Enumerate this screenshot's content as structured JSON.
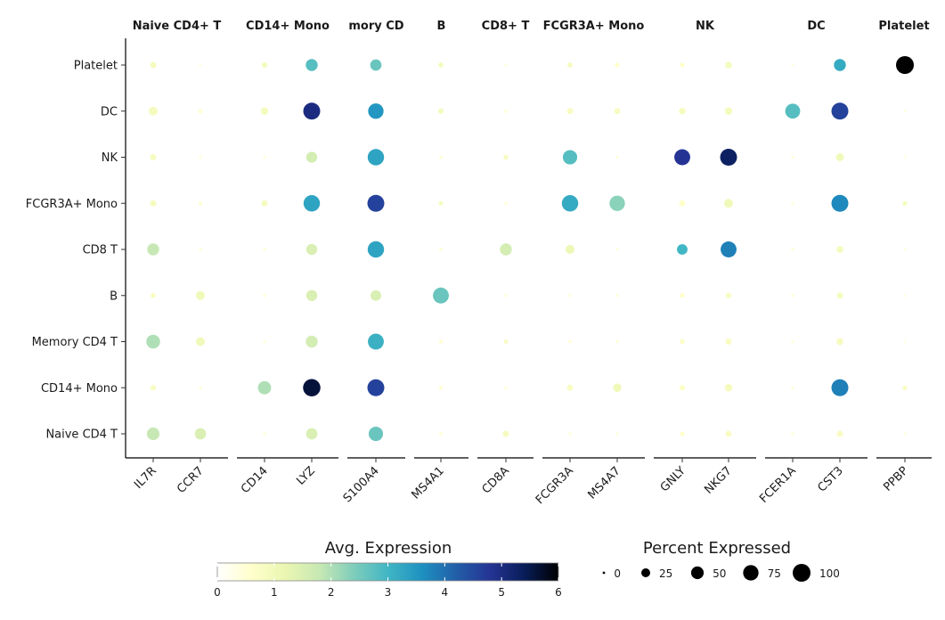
{
  "chart_data": {
    "type": "dotplot",
    "panels": [
      {
        "label": "Naive CD4+ T",
        "genes": [
          "IL7R",
          "CCR7"
        ]
      },
      {
        "label": "CD14+ Mono",
        "genes": [
          "CD14",
          "LYZ"
        ]
      },
      {
        "label": "mory CD",
        "genes": [
          "S100A4"
        ]
      },
      {
        "label": "B",
        "genes": [
          "MS4A1"
        ]
      },
      {
        "label": "CD8+ T",
        "genes": [
          "CD8A"
        ]
      },
      {
        "label": "FCGR3A+ Mono",
        "genes": [
          "FCGR3A",
          "MS4A7"
        ]
      },
      {
        "label": "NK",
        "genes": [
          "GNLY",
          "NKG7"
        ]
      },
      {
        "label": "DC",
        "genes": [
          "FCER1A",
          "CST3"
        ]
      },
      {
        "label": "Platelet",
        "genes": [
          "PPBP"
        ]
      }
    ],
    "y_categories": [
      "Platelet",
      "DC",
      "NK",
      "FCGR3A+ Mono",
      "CD8 T",
      "B",
      "Memory CD4 T",
      "CD14+ Mono",
      "Naive CD4 T"
    ],
    "genes_order": [
      "IL7R",
      "CCR7",
      "CD14",
      "LYZ",
      "S100A4",
      "MS4A1",
      "CD8A",
      "FCGR3A",
      "MS4A7",
      "GNLY",
      "NKG7",
      "FCER1A",
      "CST3",
      "PPBP"
    ],
    "points": [
      {
        "y": "Platelet",
        "x": "IL7R",
        "pct": 12,
        "avg": 0.9
      },
      {
        "y": "Platelet",
        "x": "CCR7",
        "pct": 3,
        "avg": 0.3
      },
      {
        "y": "Platelet",
        "x": "CD14",
        "pct": 10,
        "avg": 0.9
      },
      {
        "y": "Platelet",
        "x": "LYZ",
        "pct": 45,
        "avg": 2.8
      },
      {
        "y": "Platelet",
        "x": "S100A4",
        "pct": 40,
        "avg": 2.6
      },
      {
        "y": "Platelet",
        "x": "MS4A1",
        "pct": 8,
        "avg": 0.9
      },
      {
        "y": "Platelet",
        "x": "CD8A",
        "pct": 3,
        "avg": 0.3
      },
      {
        "y": "Platelet",
        "x": "FCGR3A",
        "pct": 8,
        "avg": 0.9
      },
      {
        "y": "Platelet",
        "x": "MS4A7",
        "pct": 7,
        "avg": 0.6
      },
      {
        "y": "Platelet",
        "x": "GNLY",
        "pct": 7,
        "avg": 0.6
      },
      {
        "y": "Platelet",
        "x": "NKG7",
        "pct": 14,
        "avg": 0.9
      },
      {
        "y": "Platelet",
        "x": "FCER1A",
        "pct": 3,
        "avg": 0.3
      },
      {
        "y": "Platelet",
        "x": "CST3",
        "pct": 45,
        "avg": 3.2
      },
      {
        "y": "Platelet",
        "x": "PPBP",
        "pct": 100,
        "avg": 6.0
      },
      {
        "y": "DC",
        "x": "IL7R",
        "pct": 25,
        "avg": 0.9
      },
      {
        "y": "DC",
        "x": "CCR7",
        "pct": 7,
        "avg": 0.5
      },
      {
        "y": "DC",
        "x": "CD14",
        "pct": 18,
        "avg": 0.9
      },
      {
        "y": "DC",
        "x": "LYZ",
        "pct": 90,
        "avg": 5.0
      },
      {
        "y": "DC",
        "x": "S100A4",
        "pct": 75,
        "avg": 3.5
      },
      {
        "y": "DC",
        "x": "MS4A1",
        "pct": 10,
        "avg": 0.9
      },
      {
        "y": "DC",
        "x": "CD8A",
        "pct": 4,
        "avg": 0.4
      },
      {
        "y": "DC",
        "x": "FCGR3A",
        "pct": 12,
        "avg": 0.8
      },
      {
        "y": "DC",
        "x": "MS4A7",
        "pct": 12,
        "avg": 0.8
      },
      {
        "y": "DC",
        "x": "GNLY",
        "pct": 14,
        "avg": 0.9
      },
      {
        "y": "DC",
        "x": "NKG7",
        "pct": 18,
        "avg": 0.9
      },
      {
        "y": "DC",
        "x": "FCER1A",
        "pct": 70,
        "avg": 2.8
      },
      {
        "y": "DC",
        "x": "CST3",
        "pct": 90,
        "avg": 4.6
      },
      {
        "y": "DC",
        "x": "PPBP",
        "pct": 3,
        "avg": 0.3
      },
      {
        "y": "NK",
        "x": "IL7R",
        "pct": 12,
        "avg": 0.9
      },
      {
        "y": "NK",
        "x": "CCR7",
        "pct": 3,
        "avg": 0.4
      },
      {
        "y": "NK",
        "x": "CD14",
        "pct": 3,
        "avg": 0.4
      },
      {
        "y": "NK",
        "x": "LYZ",
        "pct": 38,
        "avg": 1.6
      },
      {
        "y": "NK",
        "x": "S100A4",
        "pct": 85,
        "avg": 3.3
      },
      {
        "y": "NK",
        "x": "MS4A1",
        "pct": 4,
        "avg": 0.4
      },
      {
        "y": "NK",
        "x": "CD8A",
        "pct": 8,
        "avg": 0.9
      },
      {
        "y": "NK",
        "x": "FCGR3A",
        "pct": 65,
        "avg": 2.8
      },
      {
        "y": "NK",
        "x": "MS4A7",
        "pct": 3,
        "avg": 0.4
      },
      {
        "y": "NK",
        "x": "GNLY",
        "pct": 80,
        "avg": 4.8
      },
      {
        "y": "NK",
        "x": "NKG7",
        "pct": 90,
        "avg": 5.3
      },
      {
        "y": "NK",
        "x": "FCER1A",
        "pct": 3,
        "avg": 0.4
      },
      {
        "y": "NK",
        "x": "CST3",
        "pct": 20,
        "avg": 1.0
      },
      {
        "y": "NK",
        "x": "PPBP",
        "pct": 3,
        "avg": 0.3
      },
      {
        "y": "FCGR3A+ Mono",
        "x": "IL7R",
        "pct": 12,
        "avg": 0.9
      },
      {
        "y": "FCGR3A+ Mono",
        "x": "CCR7",
        "pct": 5,
        "avg": 0.5
      },
      {
        "y": "FCGR3A+ Mono",
        "x": "CD14",
        "pct": 12,
        "avg": 0.9
      },
      {
        "y": "FCGR3A+ Mono",
        "x": "LYZ",
        "pct": 85,
        "avg": 3.3
      },
      {
        "y": "FCGR3A+ Mono",
        "x": "S100A4",
        "pct": 90,
        "avg": 4.6
      },
      {
        "y": "FCGR3A+ Mono",
        "x": "MS4A1",
        "pct": 6,
        "avg": 0.9
      },
      {
        "y": "FCGR3A+ Mono",
        "x": "CD8A",
        "pct": 4,
        "avg": 0.4
      },
      {
        "y": "FCGR3A+ Mono",
        "x": "FCGR3A",
        "pct": 85,
        "avg": 3.2
      },
      {
        "y": "FCGR3A+ Mono",
        "x": "MS4A7",
        "pct": 75,
        "avg": 2.3
      },
      {
        "y": "FCGR3A+ Mono",
        "x": "GNLY",
        "pct": 12,
        "avg": 0.6
      },
      {
        "y": "FCGR3A+ Mono",
        "x": "NKG7",
        "pct": 25,
        "avg": 1.0
      },
      {
        "y": "FCGR3A+ Mono",
        "x": "FCER1A",
        "pct": 3,
        "avg": 0.4
      },
      {
        "y": "FCGR3A+ Mono",
        "x": "CST3",
        "pct": 90,
        "avg": 3.7
      },
      {
        "y": "FCGR3A+ Mono",
        "x": "PPBP",
        "pct": 7,
        "avg": 0.9
      },
      {
        "y": "CD8 T",
        "x": "IL7R",
        "pct": 45,
        "avg": 1.8
      },
      {
        "y": "CD8 T",
        "x": "CCR7",
        "pct": 3,
        "avg": 0.4
      },
      {
        "y": "CD8 T",
        "x": "CD14",
        "pct": 3,
        "avg": 0.4
      },
      {
        "y": "CD8 T",
        "x": "LYZ",
        "pct": 38,
        "avg": 1.5
      },
      {
        "y": "CD8 T",
        "x": "S100A4",
        "pct": 85,
        "avg": 3.3
      },
      {
        "y": "CD8 T",
        "x": "MS4A1",
        "pct": 4,
        "avg": 0.4
      },
      {
        "y": "CD8 T",
        "x": "CD8A",
        "pct": 45,
        "avg": 1.6
      },
      {
        "y": "CD8 T",
        "x": "FCGR3A",
        "pct": 25,
        "avg": 1.1
      },
      {
        "y": "CD8 T",
        "x": "MS4A7",
        "pct": 3,
        "avg": 0.4
      },
      {
        "y": "CD8 T",
        "x": "GNLY",
        "pct": 35,
        "avg": 3.0
      },
      {
        "y": "CD8 T",
        "x": "NKG7",
        "pct": 80,
        "avg": 3.8
      },
      {
        "y": "CD8 T",
        "x": "FCER1A",
        "pct": 3,
        "avg": 0.4
      },
      {
        "y": "CD8 T",
        "x": "CST3",
        "pct": 15,
        "avg": 0.9
      },
      {
        "y": "CD8 T",
        "x": "PPBP",
        "pct": 3,
        "avg": 0.3
      },
      {
        "y": "B",
        "x": "IL7R",
        "pct": 8,
        "avg": 0.8
      },
      {
        "y": "B",
        "x": "CCR7",
        "pct": 25,
        "avg": 1.0
      },
      {
        "y": "B",
        "x": "CD14",
        "pct": 3,
        "avg": 0.4
      },
      {
        "y": "B",
        "x": "LYZ",
        "pct": 38,
        "avg": 1.5
      },
      {
        "y": "B",
        "x": "S100A4",
        "pct": 35,
        "avg": 1.5
      },
      {
        "y": "B",
        "x": "MS4A1",
        "pct": 80,
        "avg": 2.6
      },
      {
        "y": "B",
        "x": "CD8A",
        "pct": 3,
        "avg": 0.4
      },
      {
        "y": "B",
        "x": "FCGR3A",
        "pct": 3,
        "avg": 0.4
      },
      {
        "y": "B",
        "x": "MS4A7",
        "pct": 3,
        "avg": 0.4
      },
      {
        "y": "B",
        "x": "GNLY",
        "pct": 7,
        "avg": 0.6
      },
      {
        "y": "B",
        "x": "NKG7",
        "pct": 10,
        "avg": 0.8
      },
      {
        "y": "B",
        "x": "FCER1A",
        "pct": 3,
        "avg": 0.4
      },
      {
        "y": "B",
        "x": "CST3",
        "pct": 12,
        "avg": 0.9
      },
      {
        "y": "B",
        "x": "PPBP",
        "pct": 3,
        "avg": 0.3
      },
      {
        "y": "Memory CD4 T",
        "x": "IL7R",
        "pct": 60,
        "avg": 2.0
      },
      {
        "y": "Memory CD4 T",
        "x": "CCR7",
        "pct": 25,
        "avg": 1.0
      },
      {
        "y": "Memory CD4 T",
        "x": "CD14",
        "pct": 3,
        "avg": 0.4
      },
      {
        "y": "Memory CD4 T",
        "x": "LYZ",
        "pct": 45,
        "avg": 1.6
      },
      {
        "y": "Memory CD4 T",
        "x": "S100A4",
        "pct": 80,
        "avg": 3.1
      },
      {
        "y": "Memory CD4 T",
        "x": "MS4A1",
        "pct": 5,
        "avg": 0.5
      },
      {
        "y": "Memory CD4 T",
        "x": "CD8A",
        "pct": 6,
        "avg": 0.8
      },
      {
        "y": "Memory CD4 T",
        "x": "FCGR3A",
        "pct": 4,
        "avg": 0.4
      },
      {
        "y": "Memory CD4 T",
        "x": "MS4A7",
        "pct": 3,
        "avg": 0.4
      },
      {
        "y": "Memory CD4 T",
        "x": "GNLY",
        "pct": 8,
        "avg": 0.7
      },
      {
        "y": "Memory CD4 T",
        "x": "NKG7",
        "pct": 12,
        "avg": 0.8
      },
      {
        "y": "Memory CD4 T",
        "x": "FCER1A",
        "pct": 3,
        "avg": 0.4
      },
      {
        "y": "Memory CD4 T",
        "x": "CST3",
        "pct": 15,
        "avg": 0.9
      },
      {
        "y": "Memory CD4 T",
        "x": "PPBP",
        "pct": 3,
        "avg": 0.3
      },
      {
        "y": "CD14+ Mono",
        "x": "IL7R",
        "pct": 10,
        "avg": 0.8
      },
      {
        "y": "CD14+ Mono",
        "x": "CCR7",
        "pct": 3,
        "avg": 0.4
      },
      {
        "y": "CD14+ Mono",
        "x": "CD14",
        "pct": 55,
        "avg": 2.0
      },
      {
        "y": "CD14+ Mono",
        "x": "LYZ",
        "pct": 95,
        "avg": 5.6
      },
      {
        "y": "CD14+ Mono",
        "x": "S100A4",
        "pct": 90,
        "avg": 4.6
      },
      {
        "y": "CD14+ Mono",
        "x": "MS4A1",
        "pct": 5,
        "avg": 0.5
      },
      {
        "y": "CD14+ Mono",
        "x": "CD8A",
        "pct": 4,
        "avg": 0.4
      },
      {
        "y": "CD14+ Mono",
        "x": "FCGR3A",
        "pct": 12,
        "avg": 0.8
      },
      {
        "y": "CD14+ Mono",
        "x": "MS4A7",
        "pct": 22,
        "avg": 1.0
      },
      {
        "y": "CD14+ Mono",
        "x": "GNLY",
        "pct": 10,
        "avg": 0.7
      },
      {
        "y": "CD14+ Mono",
        "x": "NKG7",
        "pct": 18,
        "avg": 0.9
      },
      {
        "y": "CD14+ Mono",
        "x": "FCER1A",
        "pct": 3,
        "avg": 0.4
      },
      {
        "y": "CD14+ Mono",
        "x": "CST3",
        "pct": 90,
        "avg": 3.8
      },
      {
        "y": "CD14+ Mono",
        "x": "PPBP",
        "pct": 7,
        "avg": 0.8
      },
      {
        "y": "Naive CD4 T",
        "x": "IL7R",
        "pct": 50,
        "avg": 1.8
      },
      {
        "y": "Naive CD4 T",
        "x": "CCR7",
        "pct": 40,
        "avg": 1.5
      },
      {
        "y": "Naive CD4 T",
        "x": "CD14",
        "pct": 3,
        "avg": 0.4
      },
      {
        "y": "Naive CD4 T",
        "x": "LYZ",
        "pct": 40,
        "avg": 1.5
      },
      {
        "y": "Naive CD4 T",
        "x": "S100A4",
        "pct": 65,
        "avg": 2.6
      },
      {
        "y": "Naive CD4 T",
        "x": "MS4A1",
        "pct": 4,
        "avg": 0.4
      },
      {
        "y": "Naive CD4 T",
        "x": "CD8A",
        "pct": 12,
        "avg": 0.9
      },
      {
        "y": "Naive CD4 T",
        "x": "FCGR3A",
        "pct": 3,
        "avg": 0.4
      },
      {
        "y": "Naive CD4 T",
        "x": "MS4A7",
        "pct": 3,
        "avg": 0.4
      },
      {
        "y": "Naive CD4 T",
        "x": "GNLY",
        "pct": 7,
        "avg": 0.6
      },
      {
        "y": "Naive CD4 T",
        "x": "NKG7",
        "pct": 12,
        "avg": 0.8
      },
      {
        "y": "Naive CD4 T",
        "x": "FCER1A",
        "pct": 3,
        "avg": 0.4
      },
      {
        "y": "Naive CD4 T",
        "x": "CST3",
        "pct": 12,
        "avg": 0.8
      },
      {
        "y": "Naive CD4 T",
        "x": "PPBP",
        "pct": 3,
        "avg": 0.3
      }
    ],
    "color_legend": {
      "title": "Avg. Expression",
      "ticks": [
        "0",
        "1",
        "2",
        "3",
        "4",
        "5",
        "6"
      ],
      "range": [
        0,
        6
      ],
      "colors": [
        "#ffffff",
        "#ffffcc",
        "#eaf6b1",
        "#c7e8b4",
        "#7fcdbb",
        "#41b6c4",
        "#1d91c0",
        "#225ea8",
        "#253494",
        "#081d58",
        "#000000"
      ]
    },
    "size_legend": {
      "title": "Percent Expressed",
      "values": [
        0,
        25,
        50,
        75,
        100
      ],
      "labels": [
        "0",
        "25",
        "50",
        "75",
        "100"
      ]
    }
  }
}
